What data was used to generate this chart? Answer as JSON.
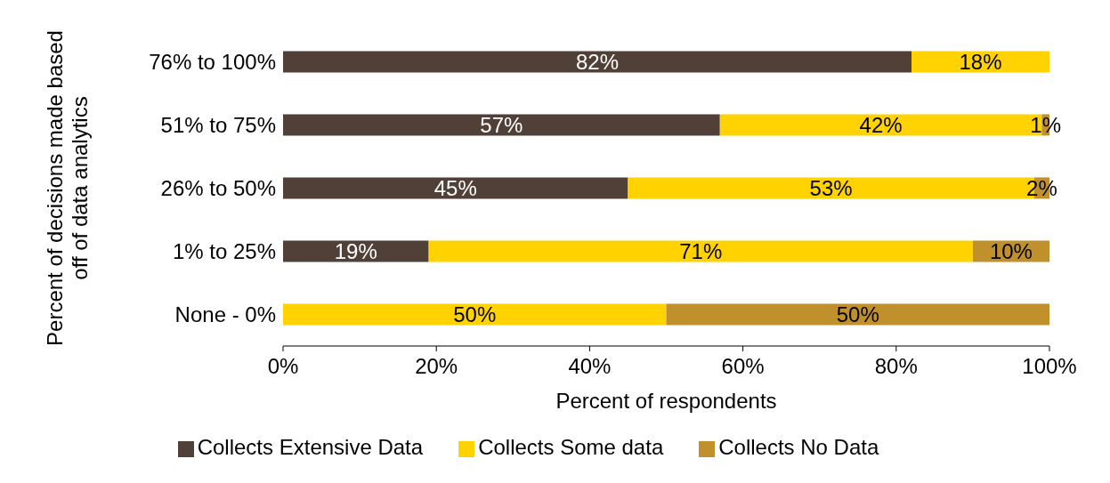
{
  "chart_data": {
    "type": "bar",
    "orientation": "horizontal",
    "stacked": true,
    "xlabel": "Percent of respondents",
    "ylabel": "Percent of decisions made based off of data analytics",
    "categories": [
      "76% to 100%",
      "51% to 75%",
      "26% to 50%",
      "1% to 25%",
      "None - 0%"
    ],
    "series": [
      {
        "name": "Collects Extensive Data",
        "color": "#504038",
        "values": [
          82,
          57,
          45,
          19,
          null
        ],
        "value_labels": [
          "82%",
          "57%",
          "45%",
          "19%",
          null
        ]
      },
      {
        "name": "Collects Some data",
        "color": "#ffd200",
        "values": [
          18,
          42,
          53,
          71,
          50
        ],
        "value_labels": [
          "18%",
          "42%",
          "53%",
          "71%",
          "50%"
        ]
      },
      {
        "name": "Collects No Data",
        "color": "#c0902c",
        "values": [
          null,
          1,
          2,
          10,
          50
        ],
        "value_labels": [
          null,
          "1%",
          "2%",
          "10%",
          "50%"
        ]
      }
    ],
    "xlim": [
      0,
      100
    ],
    "xticks": [
      {
        "value": 0,
        "label": "0%"
      },
      {
        "value": 20,
        "label": "20%"
      },
      {
        "value": 40,
        "label": "40%"
      },
      {
        "value": 60,
        "label": "60%"
      },
      {
        "value": 80,
        "label": "80%"
      },
      {
        "value": 100,
        "label": "100%"
      }
    ],
    "legend": "bottom"
  }
}
